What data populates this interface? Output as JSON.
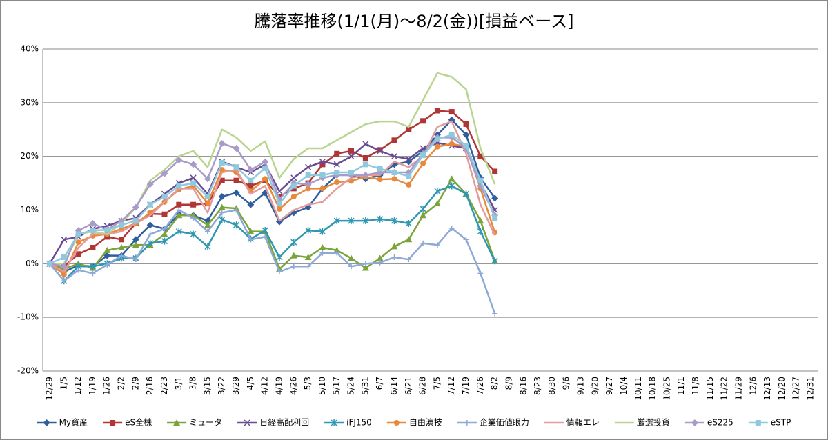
{
  "chart_data": {
    "type": "line",
    "title": "騰落率推移(1/1(月)～8/2(金))[損益ベース]",
    "categories": [
      "12/29",
      "1/5",
      "1/12",
      "1/19",
      "1/26",
      "2/2",
      "2/9",
      "2/16",
      "2/23",
      "3/1",
      "3/8",
      "3/15",
      "3/22",
      "3/29",
      "4/5",
      "4/12",
      "4/19",
      "4/26",
      "5/3",
      "5/10",
      "5/17",
      "5/24",
      "5/31",
      "6/7",
      "6/14",
      "6/21",
      "6/28",
      "7/5",
      "7/12",
      "7/19",
      "7/26",
      "8/2",
      "8/9",
      "8/16",
      "8/23",
      "8/30",
      "9/6",
      "9/13",
      "9/20",
      "9/27",
      "10/4",
      "10/11",
      "10/18",
      "10/25",
      "11/1",
      "11/8",
      "11/15",
      "11/22",
      "11/29",
      "12/6",
      "12/13",
      "12/20",
      "12/27",
      "12/31"
    ],
    "ylim": [
      -20,
      40
    ],
    "yticks": [
      {
        "value": -20,
        "label": "-20%"
      },
      {
        "value": -10,
        "label": "-10%"
      },
      {
        "value": 0,
        "label": "0%"
      },
      {
        "value": 10,
        "label": "10%"
      },
      {
        "value": 20,
        "label": "20%"
      },
      {
        "value": 30,
        "label": "30%"
      },
      {
        "value": 40,
        "label": "40%"
      }
    ],
    "grid": true,
    "legend": "bottom",
    "series": [
      {
        "name": "My資産",
        "color": "#2f5e9e",
        "marker": "diamond",
        "values": [
          0,
          -1.5,
          -0.3,
          -0.5,
          1.5,
          1.5,
          4.5,
          7.2,
          6.5,
          9.2,
          9,
          8,
          12.5,
          13.2,
          11,
          13.2,
          7.8,
          9.5,
          10.5,
          14,
          16.5,
          16.5,
          15.8,
          16.5,
          18.5,
          19,
          21,
          24,
          26.8,
          24,
          16,
          12.2,
          null,
          null,
          null,
          null,
          null,
          null,
          null,
          null,
          null,
          null,
          null,
          null,
          null,
          null,
          null,
          null,
          null,
          null,
          null,
          null,
          null,
          null
        ]
      },
      {
        "name": "eS全株",
        "color": "#b03636",
        "marker": "square",
        "values": [
          0,
          -0.5,
          1.8,
          3,
          5,
          4.5,
          7.5,
          9.3,
          9.2,
          11,
          11,
          11.2,
          15.5,
          15.5,
          14.5,
          15.5,
          12.5,
          14,
          15,
          18.5,
          20.5,
          21,
          19.7,
          21.2,
          23,
          25,
          26.6,
          28.5,
          28.3,
          26,
          20,
          17.2,
          null,
          null,
          null,
          null,
          null,
          null,
          null,
          null,
          null,
          null,
          null,
          null,
          null,
          null,
          null,
          null,
          null,
          null,
          null,
          null,
          null,
          null
        ]
      },
      {
        "name": "ミュータ",
        "color": "#7aa33a",
        "marker": "triangle",
        "values": [
          0,
          -1,
          0,
          -0.8,
          2.5,
          3,
          3.5,
          3.5,
          5.5,
          9,
          9,
          7.2,
          10.5,
          10.3,
          6,
          6,
          -1,
          1.5,
          1.2,
          3,
          2.5,
          1,
          -0.8,
          1,
          3.2,
          4.5,
          9,
          11.2,
          15.8,
          13,
          8,
          0.5,
          null,
          null,
          null,
          null,
          null,
          null,
          null,
          null,
          null,
          null,
          null,
          null,
          null,
          null,
          null,
          null,
          null,
          null,
          null,
          null,
          null,
          null
        ]
      },
      {
        "name": "日経高配利回",
        "color": "#6a4a93",
        "marker": "x",
        "values": [
          0,
          4.5,
          5,
          6.5,
          7,
          8,
          8.5,
          11,
          13,
          15,
          16,
          13,
          19,
          18,
          17,
          18.5,
          13.5,
          16,
          18,
          19,
          18.5,
          20,
          22.3,
          21,
          20,
          19.5,
          21.5,
          22.5,
          22,
          21.5,
          15,
          10,
          null,
          null,
          null,
          null,
          null,
          null,
          null,
          null,
          null,
          null,
          null,
          null,
          null,
          null,
          null,
          null,
          null,
          null,
          null,
          null,
          null,
          null
        ]
      },
      {
        "name": "iFJ150",
        "color": "#2e97b2",
        "marker": "star",
        "values": [
          0,
          -3.2,
          -0.5,
          -0.5,
          0,
          1,
          1,
          3.8,
          4.2,
          6,
          5.5,
          3.2,
          8.2,
          7.2,
          4.6,
          6.2,
          1.2,
          4,
          6.2,
          6,
          8,
          8,
          8,
          8.3,
          8,
          7.5,
          10.2,
          13.5,
          14.5,
          13,
          6,
          0.5,
          null,
          null,
          null,
          null,
          null,
          null,
          null,
          null,
          null,
          null,
          null,
          null,
          null,
          null,
          null,
          null,
          null,
          null,
          null,
          null,
          null,
          null
        ]
      },
      {
        "name": "自由演技",
        "color": "#e8883a",
        "marker": "circle",
        "values": [
          0,
          -2,
          4,
          5.2,
          5.5,
          6.5,
          7.5,
          9.5,
          11.5,
          13.8,
          14.5,
          11.3,
          17.5,
          17,
          13.5,
          15.8,
          10.2,
          12.5,
          14,
          14,
          15.2,
          15.4,
          16.2,
          15.7,
          15.8,
          14.7,
          18.7,
          21.8,
          22.3,
          21.8,
          14,
          5.8,
          null,
          null,
          null,
          null,
          null,
          null,
          null,
          null,
          null,
          null,
          null,
          null,
          null,
          null,
          null,
          null,
          null,
          null,
          null,
          null,
          null,
          null
        ]
      },
      {
        "name": "企業価値眼力",
        "color": "#8ea8d8",
        "marker": "plus",
        "values": [
          0,
          -3.2,
          -1.2,
          -1.8,
          -0.2,
          1.5,
          0.8,
          5.5,
          6.5,
          10,
          8.5,
          6,
          9.5,
          10,
          4.5,
          5,
          -1.5,
          -0.5,
          -0.5,
          2,
          2,
          -0.5,
          0,
          0.2,
          1.2,
          0.8,
          3.8,
          3.5,
          6.6,
          4.5,
          -1.8,
          -9.3,
          null,
          null,
          null,
          null,
          null,
          null,
          null,
          null,
          null,
          null,
          null,
          null,
          null,
          null,
          null,
          null,
          null,
          null,
          null,
          null,
          null,
          null
        ]
      },
      {
        "name": "情報エレ",
        "color": "#e29a9a",
        "marker": "none",
        "values": [
          0,
          -1.5,
          3,
          5.5,
          5.5,
          6,
          7.5,
          9,
          11.5,
          14,
          14,
          9.5,
          17,
          17.5,
          13,
          14.5,
          8,
          10,
          11,
          11.5,
          14,
          16,
          16.5,
          16.5,
          19,
          18,
          20,
          25.5,
          26.5,
          20.5,
          11,
          5.3,
          null,
          null,
          null,
          null,
          null,
          null,
          null,
          null,
          null,
          null,
          null,
          null,
          null,
          null,
          null,
          null,
          null,
          null,
          null,
          null,
          null,
          null
        ]
      },
      {
        "name": "厳選投資",
        "color": "#b8d48f",
        "marker": "none",
        "values": [
          0,
          0,
          5.5,
          6,
          5.5,
          7.5,
          10.5,
          15.5,
          17.5,
          20,
          21,
          18,
          25,
          23.5,
          21,
          22.8,
          16,
          19.5,
          21.5,
          21.5,
          23,
          24.5,
          26,
          26.5,
          26.5,
          25.5,
          30.5,
          35.5,
          34.8,
          32.5,
          21.5,
          14.8,
          null,
          null,
          null,
          null,
          null,
          null,
          null,
          null,
          null,
          null,
          null,
          null,
          null,
          null,
          null,
          null,
          null,
          null,
          null,
          null,
          null,
          null
        ]
      },
      {
        "name": "eS225",
        "color": "#a99bc9",
        "marker": "diamond",
        "values": [
          0,
          -0.5,
          6.2,
          7.5,
          6.3,
          8,
          10.5,
          14.8,
          16.8,
          19.3,
          18.5,
          15.8,
          22.4,
          21.5,
          17.5,
          19,
          12,
          15,
          14.8,
          16,
          16.5,
          16.5,
          16.5,
          17,
          17,
          17,
          20.5,
          23.5,
          23.5,
          21.5,
          14.5,
          9,
          null,
          null,
          null,
          null,
          null,
          null,
          null,
          null,
          null,
          null,
          null,
          null,
          null,
          null,
          null,
          null,
          null,
          null,
          null,
          null,
          null,
          null
        ]
      },
      {
        "name": "eSTP",
        "color": "#8ec9dd",
        "marker": "square",
        "values": [
          0,
          1.2,
          5.5,
          6.2,
          6.3,
          7.2,
          8,
          11,
          12.5,
          14.5,
          15,
          12.5,
          18.8,
          18,
          15.5,
          17.8,
          11.2,
          14.5,
          16.5,
          16.5,
          17,
          17,
          18.5,
          17.7,
          17,
          16.3,
          20.2,
          23.2,
          24,
          22,
          15.5,
          8.5,
          null,
          null,
          null,
          null,
          null,
          null,
          null,
          null,
          null,
          null,
          null,
          null,
          null,
          null,
          null,
          null,
          null,
          null,
          null,
          null,
          null,
          null
        ]
      }
    ]
  }
}
